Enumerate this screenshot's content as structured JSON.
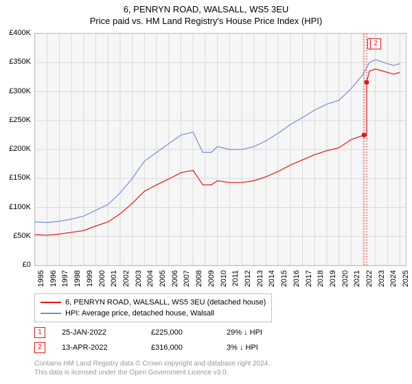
{
  "title_line1": "6, PENRYN ROAD, WALSALL, WS5 3EU",
  "title_line2": "Price paid vs. HM Land Registry's House Price Index (HPI)",
  "chart": {
    "type": "line",
    "background_color": "#f6f6f6",
    "grid_color": "#d9d9d9",
    "border_color": "#bfbfbf",
    "x_range": [
      1995,
      2025.5
    ],
    "y_range": [
      0,
      400000
    ],
    "y_ticks": [
      0,
      50000,
      100000,
      150000,
      200000,
      250000,
      300000,
      350000,
      400000
    ],
    "y_tick_labels": [
      "£0",
      "£50K",
      "£100K",
      "£150K",
      "£200K",
      "£250K",
      "£300K",
      "£350K",
      "£400K"
    ],
    "x_ticks": [
      1995,
      1996,
      1997,
      1998,
      1999,
      2000,
      2001,
      2002,
      2003,
      2004,
      2005,
      2006,
      2007,
      2008,
      2009,
      2010,
      2011,
      2012,
      2013,
      2014,
      2015,
      2016,
      2017,
      2018,
      2019,
      2020,
      2021,
      2022,
      2023,
      2024,
      2025
    ],
    "series": [
      {
        "name": "hpi",
        "color": "#6f8fd8",
        "width": 1.2,
        "points": [
          [
            1995,
            75000
          ],
          [
            1996,
            74000
          ],
          [
            1997,
            76000
          ],
          [
            1998,
            80000
          ],
          [
            1999,
            85000
          ],
          [
            2000,
            95000
          ],
          [
            2001,
            105000
          ],
          [
            2002,
            125000
          ],
          [
            2003,
            150000
          ],
          [
            2004,
            180000
          ],
          [
            2005,
            195000
          ],
          [
            2006,
            210000
          ],
          [
            2007,
            225000
          ],
          [
            2008,
            230000
          ],
          [
            2008.8,
            195000
          ],
          [
            2009.5,
            195000
          ],
          [
            2010,
            205000
          ],
          [
            2011,
            200000
          ],
          [
            2012,
            200000
          ],
          [
            2013,
            205000
          ],
          [
            2014,
            215000
          ],
          [
            2015,
            228000
          ],
          [
            2016,
            243000
          ],
          [
            2017,
            255000
          ],
          [
            2018,
            268000
          ],
          [
            2019,
            278000
          ],
          [
            2020,
            285000
          ],
          [
            2021,
            305000
          ],
          [
            2022,
            330000
          ],
          [
            2022.5,
            350000
          ],
          [
            2023,
            355000
          ],
          [
            2024,
            348000
          ],
          [
            2024.5,
            345000
          ],
          [
            2025,
            348000
          ]
        ]
      },
      {
        "name": "price_paid",
        "color": "#e01515",
        "width": 1.2,
        "points": [
          [
            1995,
            53000
          ],
          [
            1996,
            52000
          ],
          [
            1997,
            54000
          ],
          [
            1998,
            57000
          ],
          [
            1999,
            60000
          ],
          [
            2000,
            68000
          ],
          [
            2001,
            75000
          ],
          [
            2002,
            89000
          ],
          [
            2003,
            107000
          ],
          [
            2004,
            128000
          ],
          [
            2005,
            139000
          ],
          [
            2006,
            149000
          ],
          [
            2007,
            160000
          ],
          [
            2008,
            164000
          ],
          [
            2008.8,
            139000
          ],
          [
            2009.5,
            139000
          ],
          [
            2010,
            146000
          ],
          [
            2011,
            143000
          ],
          [
            2012,
            143000
          ],
          [
            2013,
            146000
          ],
          [
            2014,
            153000
          ],
          [
            2015,
            162000
          ],
          [
            2016,
            173000
          ],
          [
            2017,
            182000
          ],
          [
            2018,
            191000
          ],
          [
            2019,
            198000
          ],
          [
            2020,
            203000
          ],
          [
            2021,
            217000
          ],
          [
            2022.06,
            225000
          ]
        ],
        "step_to": [
          2022.28,
          316000
        ],
        "continue_points": [
          [
            2022.5,
            335000
          ],
          [
            2023,
            339000
          ],
          [
            2024,
            333000
          ],
          [
            2024.5,
            330000
          ],
          [
            2025,
            333000
          ]
        ]
      }
    ],
    "sale_markers": [
      {
        "n": "1",
        "x": 2022.06,
        "y": 225000,
        "color": "#e01515"
      },
      {
        "n": "2",
        "x": 2022.28,
        "y": 316000,
        "color": "#e01515"
      }
    ]
  },
  "legend": [
    {
      "color": "#e01515",
      "label": "6, PENRYN ROAD, WALSALL, WS5 3EU (detached house)"
    },
    {
      "color": "#6f8fd8",
      "label": "HPI: Average price, detached house, Walsall"
    }
  ],
  "sales": [
    {
      "n": "1",
      "color": "#e01515",
      "date": "25-JAN-2022",
      "price": "£225,000",
      "diff": "29% ↓ HPI"
    },
    {
      "n": "2",
      "color": "#e01515",
      "date": "13-APR-2022",
      "price": "£316,000",
      "diff": "3% ↓ HPI"
    }
  ],
  "footer_line1": "Contains HM Land Registry data © Crown copyright and database right 2024.",
  "footer_line2": "This data is licensed under the Open Government Licence v3.0."
}
